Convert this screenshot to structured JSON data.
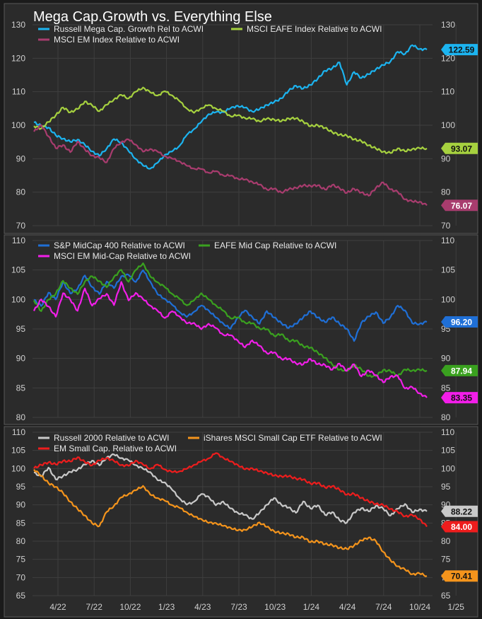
{
  "page": {
    "title": "Mega Cap.Growth vs. Everything Else"
  },
  "chart_data": [
    {
      "type": "line",
      "ylim": [
        70,
        130
      ],
      "yticks": [
        70,
        80,
        90,
        100,
        110,
        120,
        130
      ],
      "ytick_labels": [
        "70",
        "80",
        "90",
        "100",
        "110",
        "120",
        "130"
      ],
      "series": [
        {
          "name": "Russell Mega Cap. Growth Rel to ACWI",
          "color": "#1cb4f0",
          "last_label": "122.59",
          "values": [
            101,
            100,
            99,
            97,
            96,
            95,
            96,
            94,
            92,
            91,
            93,
            96,
            95,
            92,
            90,
            88,
            87,
            89,
            91,
            92,
            94,
            97,
            99,
            101,
            103,
            104,
            104,
            105,
            106,
            105,
            104,
            105,
            106,
            107,
            108,
            110,
            112,
            111,
            112,
            114,
            116,
            117,
            119,
            112,
            116,
            114,
            115,
            117,
            118,
            119,
            122,
            121,
            124,
            123,
            122.59
          ]
        },
        {
          "name": "MSCI EAFE Index Relative to ACWI",
          "color": "#a6d13f",
          "last_label": "93.07",
          "values": [
            100,
            99,
            101,
            103,
            105,
            104,
            105,
            107,
            106,
            104,
            106,
            108,
            109,
            108,
            110,
            111,
            110,
            109,
            110,
            109,
            107,
            105,
            104,
            105,
            106,
            105,
            104,
            103,
            103,
            102,
            102,
            101,
            102,
            102,
            101,
            102,
            102,
            101,
            100,
            100,
            99,
            98,
            97,
            97,
            96,
            95,
            94,
            93,
            92,
            92,
            93,
            92,
            93,
            93,
            93.07
          ]
        },
        {
          "name": "MSCI EM Index Relative to ACWI",
          "color": "#a83c6e",
          "last_label": "76.07",
          "values": [
            98,
            100,
            97,
            93,
            94,
            92,
            95,
            93,
            91,
            90,
            89,
            93,
            95,
            96,
            94,
            92,
            93,
            92,
            91,
            90,
            89,
            88,
            87,
            87,
            86,
            86,
            85,
            85,
            84,
            84,
            83,
            82,
            81,
            81,
            80,
            81,
            81,
            82,
            82,
            82,
            81,
            82,
            81,
            80,
            81,
            80,
            79,
            81,
            83,
            81,
            80,
            78,
            77,
            77,
            76.07
          ]
        }
      ]
    },
    {
      "type": "line",
      "ylim": [
        80,
        110
      ],
      "yticks": [
        80,
        85,
        90,
        95,
        100,
        105,
        110
      ],
      "ytick_labels": [
        "80",
        "85",
        "90",
        "95",
        "100",
        "105",
        "110"
      ],
      "series": [
        {
          "name": "S&P MidCap 400 Relative to ACWI",
          "color": "#1f6fd6",
          "last_label": "96.20",
          "values": [
            100,
            99,
            101,
            100,
            103,
            101,
            102,
            104,
            102,
            101,
            103,
            102,
            104,
            104,
            103,
            105,
            103,
            101,
            100,
            99,
            98,
            97,
            98,
            99,
            98,
            97,
            96,
            95,
            97,
            98,
            97,
            96,
            98,
            97,
            96,
            95,
            96,
            97,
            98,
            97,
            96,
            97,
            96,
            95,
            93,
            96,
            97,
            98,
            96,
            97,
            99,
            98,
            96,
            96,
            96.2
          ]
        },
        {
          "name": "EAFE Mid Cap Relative to ACWI",
          "color": "#3aa11f",
          "last_label": "87.94",
          "values": [
            100,
            98,
            100,
            101,
            103,
            102,
            101,
            103,
            104,
            103,
            102,
            104,
            105,
            103,
            105,
            106,
            104,
            103,
            102,
            101,
            100,
            99,
            100,
            101,
            100,
            99,
            98,
            97,
            97,
            96,
            96,
            95,
            95,
            94,
            94,
            93,
            93,
            92,
            92,
            91,
            90,
            89,
            88,
            88,
            89,
            88,
            87,
            87,
            88,
            88,
            87,
            88,
            88,
            88,
            87.94
          ]
        },
        {
          "name": "MSCI EM Mid-Cap Relative to ACWI",
          "color": "#f21ee9",
          "last_label": "83.35",
          "values": [
            98,
            100,
            99,
            97,
            101,
            100,
            98,
            102,
            99,
            100,
            101,
            99,
            103,
            100,
            101,
            100,
            99,
            98,
            97,
            98,
            97,
            96,
            96,
            95,
            96,
            95,
            94,
            94,
            93,
            92,
            93,
            92,
            91,
            91,
            90,
            90,
            89,
            89,
            90,
            89,
            89,
            88,
            89,
            88,
            89,
            87,
            88,
            87,
            86,
            87,
            87,
            85,
            85,
            84,
            83.35
          ]
        }
      ]
    },
    {
      "type": "line",
      "ylim": [
        65,
        110
      ],
      "yticks": [
        65,
        70,
        75,
        80,
        85,
        90,
        95,
        100,
        105,
        110
      ],
      "ytick_labels": [
        "65",
        "70",
        "75",
        "80",
        "85",
        "90",
        "95",
        "100",
        "105",
        "110"
      ],
      "xtick_labels": [
        "4/22",
        "7/22",
        "10/22",
        "1/23",
        "4/23",
        "7/23",
        "10/23",
        "1/24",
        "4/24",
        "7/24",
        "10/24",
        "1/25"
      ],
      "series": [
        {
          "name": "Russell 2000 Relative to ACWI",
          "color": "#c9c9c9",
          "last_label": "88.22",
          "values": [
            99,
            98,
            100,
            97,
            98,
            99,
            100,
            101,
            102,
            101,
            103,
            104,
            103,
            102,
            101,
            100,
            99,
            97,
            96,
            94,
            92,
            90,
            91,
            93,
            92,
            90,
            91,
            89,
            88,
            87,
            86,
            88,
            90,
            92,
            90,
            89,
            88,
            91,
            89,
            90,
            87,
            88,
            86,
            85,
            88,
            89,
            88,
            90,
            89,
            87,
            89,
            90,
            88,
            89,
            88.22
          ]
        },
        {
          "name": "iShares MSCI Small Cap ETF Relative to ACWI",
          "color": "#f4941c",
          "last_label": "70.41",
          "values": [
            100,
            98,
            96,
            95,
            93,
            91,
            89,
            87,
            85,
            84,
            88,
            90,
            92,
            93,
            94,
            95,
            93,
            92,
            91,
            90,
            89,
            88,
            87,
            86,
            85,
            85,
            84,
            84,
            83,
            83,
            84,
            85,
            84,
            83,
            82,
            82,
            81,
            81,
            80,
            80,
            79,
            79,
            78,
            78,
            79,
            80,
            81,
            80,
            77,
            75,
            73,
            72,
            71,
            71,
            70.41
          ]
        },
        {
          "name": "EM Small Cap. Relative to ACWI",
          "color": "#ee1d1d",
          "last_label": "84.00",
          "values": [
            100,
            101,
            102,
            101,
            102,
            102,
            103,
            102,
            101,
            102,
            103,
            102,
            101,
            101,
            102,
            101,
            100,
            101,
            100,
            99,
            99,
            100,
            101,
            102,
            103,
            104,
            103,
            102,
            101,
            100,
            100,
            99,
            99,
            98,
            98,
            98,
            97,
            97,
            96,
            96,
            95,
            95,
            94,
            93,
            93,
            92,
            91,
            90,
            90,
            89,
            88,
            87,
            87,
            86,
            84.0
          ]
        }
      ]
    }
  ]
}
